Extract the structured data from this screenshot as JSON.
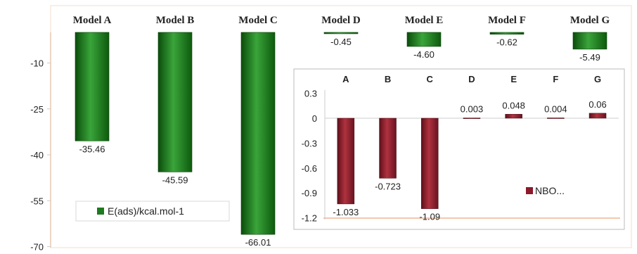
{
  "chart_data": [
    {
      "type": "bar",
      "categories": [
        "Model A",
        "Model B",
        "Model C",
        "Model D",
        "Model E",
        "Model F",
        "Model G"
      ],
      "series": [
        {
          "name": "E(ads)/kcal.mol-1",
          "values": [
            -35.46,
            -45.59,
            -66.01,
            -0.45,
            -4.6,
            -0.62,
            -5.49
          ]
        }
      ],
      "data_labels": [
        "-35.46",
        "-45.59",
        "-66.01",
        "-0.45",
        "-4.60",
        "-0.62",
        "-5.49"
      ],
      "yticks": [
        "-10",
        "-25",
        "-40",
        "-55",
        "-70"
      ],
      "ylim": [
        -70,
        0
      ],
      "category_axis_position": "top",
      "legend_position": "bottom-left",
      "color": "#1f7a1f"
    },
    {
      "type": "bar",
      "categories": [
        "A",
        "B",
        "C",
        "D",
        "E",
        "F",
        "G"
      ],
      "series": [
        {
          "name": "NBO...",
          "values": [
            -1.033,
            -0.723,
            -1.09,
            0.003,
            0.048,
            0.004,
            0.06
          ]
        }
      ],
      "data_labels": [
        "-1.033",
        "-0.723",
        "-1.09",
        "0.003",
        "0.048",
        "0.004",
        "0.06"
      ],
      "yticks": [
        "0.3",
        "0",
        "-0.3",
        "-0.6",
        "-0.9",
        "-1.2"
      ],
      "ylim": [
        -1.2,
        0.3
      ],
      "category_axis_position": "top",
      "legend_position": "right",
      "inset": true,
      "color": "#8b1a2a"
    }
  ]
}
